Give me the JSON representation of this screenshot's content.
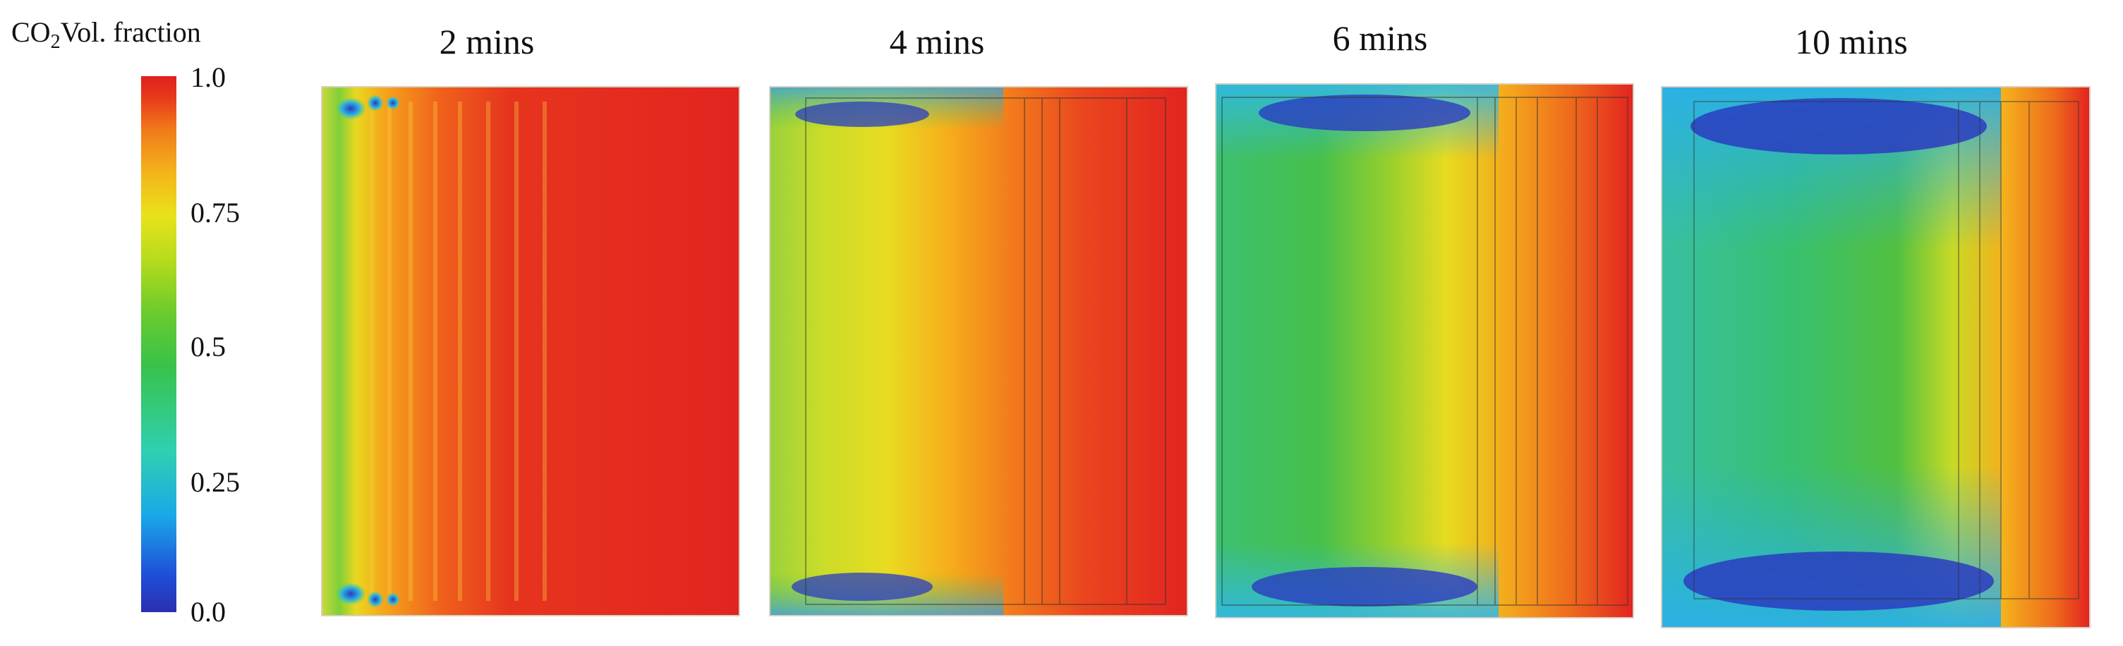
{
  "legend": {
    "title_main": "CO",
    "title_sub": "2",
    "title_rest": "Vol. fraction",
    "ticks": [
      "1.0",
      "0.75",
      "0.5",
      "0.25",
      "0.0"
    ],
    "colors": [
      "#2b2fb0",
      "#1aa8e8",
      "#38c24a",
      "#e8e21a",
      "#f07a1a",
      "#e02020"
    ]
  },
  "panels": [
    {
      "title": "2 mins"
    },
    {
      "title": "4 mins"
    },
    {
      "title": "6 mins"
    },
    {
      "title": "10 mins"
    }
  ]
}
